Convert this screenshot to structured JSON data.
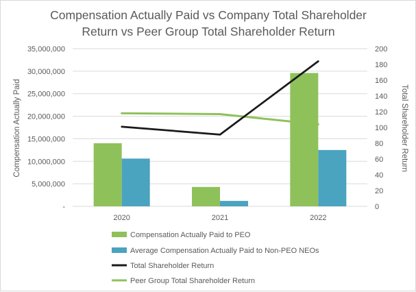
{
  "chart_data": {
    "type": "bar",
    "title_lines": [
      "Compensation Actually Paid vs Company Total Shareholder",
      "Return vs Peer Group Total Shareholder Return"
    ],
    "categories": [
      "2020",
      "2021",
      "2022"
    ],
    "y_left": {
      "label": "Compensation Actually Paid",
      "range": [
        0,
        35000000
      ],
      "ticks": [
        0,
        5000000,
        10000000,
        15000000,
        20000000,
        25000000,
        30000000,
        35000000
      ],
      "tick_labels": [
        "-",
        "5,000,000",
        "10,000,000",
        "15,000,000",
        "20,000,000",
        "25,000,000",
        "30,000,000",
        "35,000,000"
      ]
    },
    "y_right": {
      "label": "Total Shareholder Return",
      "range": [
        0,
        200
      ],
      "ticks": [
        0,
        20,
        40,
        60,
        80,
        100,
        120,
        140,
        160,
        180,
        200
      ],
      "tick_labels": [
        "0",
        "20",
        "40",
        "60",
        "80",
        "100",
        "120",
        "140",
        "160",
        "180",
        "200"
      ]
    },
    "series": [
      {
        "name": "Compensation Actually Paid to PEO",
        "kind": "bar",
        "axis": "left",
        "color": "#8fc15a",
        "values": [
          14000000,
          4300000,
          29600000
        ]
      },
      {
        "name": "Average Compensation Actually Paid to Non-PEO NEOs",
        "kind": "bar",
        "axis": "left",
        "color": "#4aa3bf",
        "values": [
          10600000,
          1200000,
          12500000
        ]
      },
      {
        "name": "Total Shareholder Return",
        "kind": "line",
        "axis": "right",
        "color": "#1a1a1a",
        "values": [
          101,
          91,
          184
        ]
      },
      {
        "name": "Peer Group Total Shareholder Return",
        "kind": "line",
        "axis": "right",
        "color": "#8fc15a",
        "values": [
          118,
          117,
          104
        ]
      }
    ],
    "grid": true,
    "legend_position": "bottom"
  }
}
